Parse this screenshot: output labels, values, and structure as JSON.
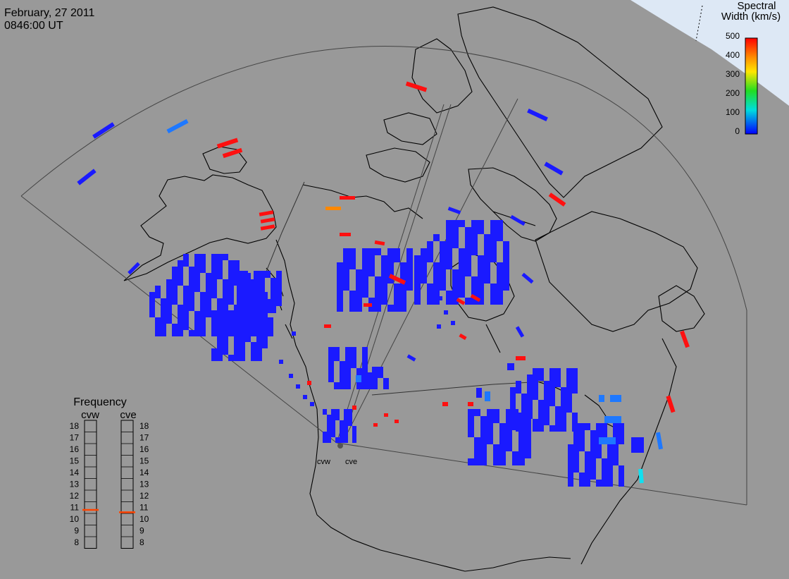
{
  "header": {
    "date": "February, 27 2011",
    "time": "0846:00 UT"
  },
  "colorbar": {
    "title_line1": "Spectral",
    "title_line2": "Width (km/s)",
    "ticks": [
      "500",
      "400",
      "300",
      "200",
      "100",
      "0"
    ]
  },
  "radars": {
    "cvw_label": "cvw",
    "cve_label": "cve"
  },
  "frequency_panel": {
    "title": "Frequency",
    "left_label": "cvw",
    "right_label": "cve",
    "ticks": [
      "18",
      "17",
      "16",
      "15",
      "14",
      "13",
      "12",
      "11",
      "10",
      "9",
      "8"
    ],
    "cvw_value": 10.8,
    "cve_value": 10.6,
    "marker_color": "#ff4400"
  },
  "colors": {
    "background": "#999999",
    "coast": "#000000",
    "twilight": "#dde8f5",
    "low_width": "#1a1aff",
    "mid_low_width": "#1e78ff",
    "cyan_width": "#10e0f0",
    "orange_width": "#ff8800",
    "high_width": "#ff1010"
  }
}
